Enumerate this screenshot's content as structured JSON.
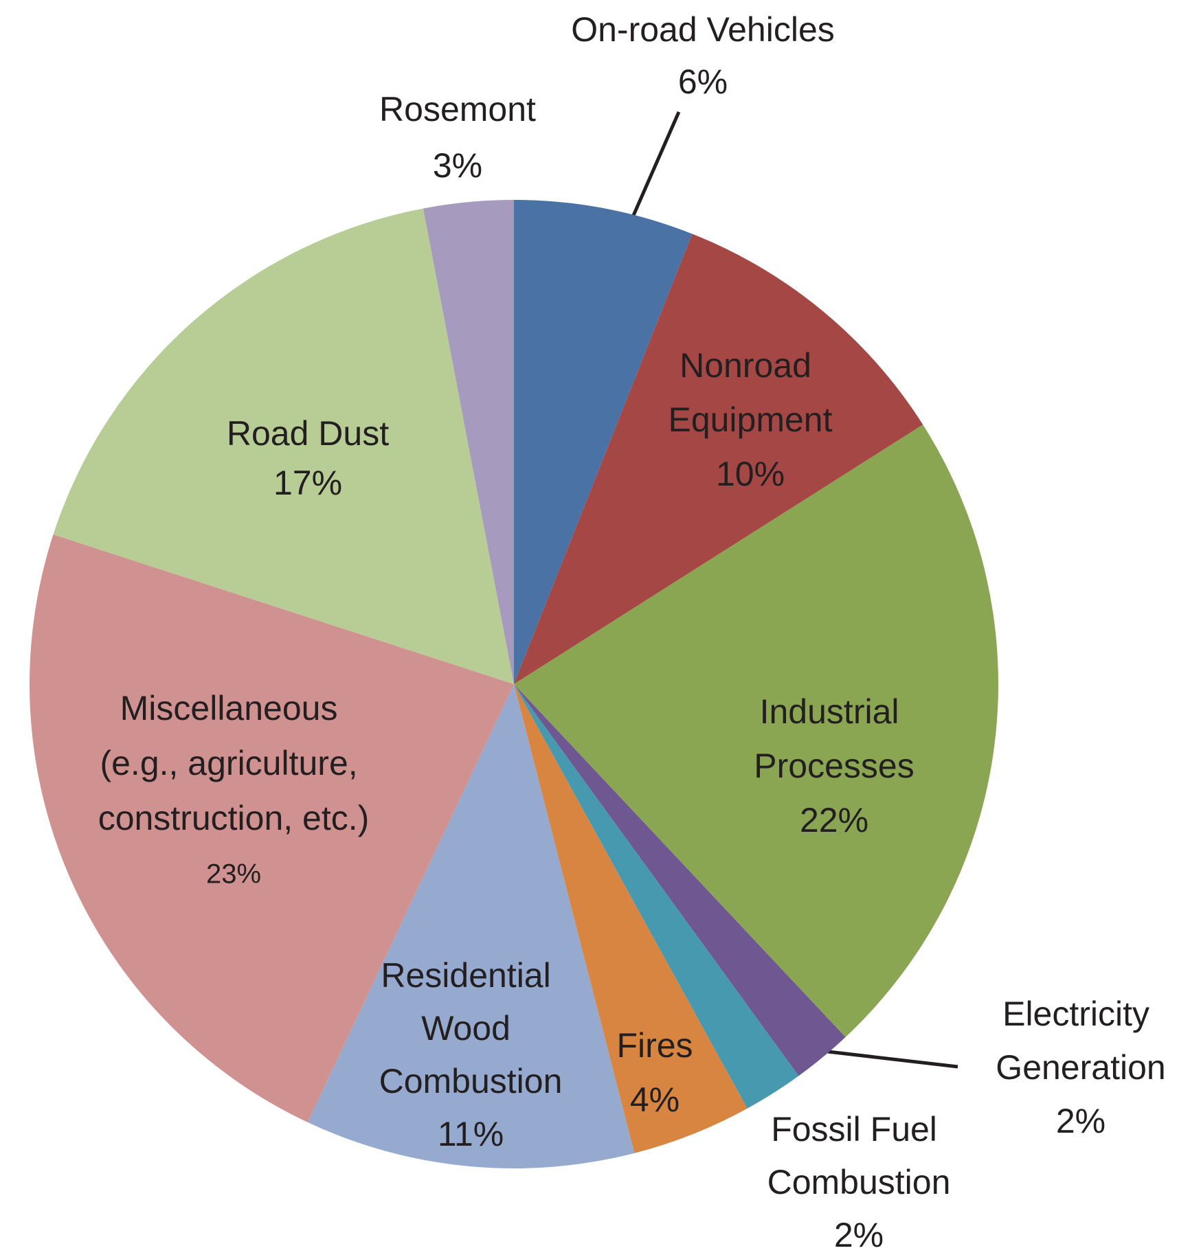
{
  "chart_data": {
    "type": "pie",
    "categories": [
      "On-road Vehicles",
      "Nonroad Equipment",
      "Industrial Processes",
      "Electricity Generation",
      "Fossil Fuel Combustion",
      "Fires",
      "Residential Wood Combustion",
      "Miscellaneous (e.g., agriculture, construction, etc.)",
      "Road Dust",
      "Rosemont"
    ],
    "values": [
      6,
      10,
      22,
      2,
      2,
      4,
      11,
      23,
      17,
      3
    ],
    "value_labels": [
      "6%",
      "10%",
      "22%",
      "2%",
      "2%",
      "4%",
      "11%",
      "23%",
      "17%",
      "3%"
    ],
    "colors": [
      "#4a72a5",
      "#a54744",
      "#8aa652",
      "#6f5791",
      "#4799af",
      "#d98542",
      "#96a9ce",
      "#cf9291",
      "#b8cd95",
      "#a69bbf"
    ]
  }
}
